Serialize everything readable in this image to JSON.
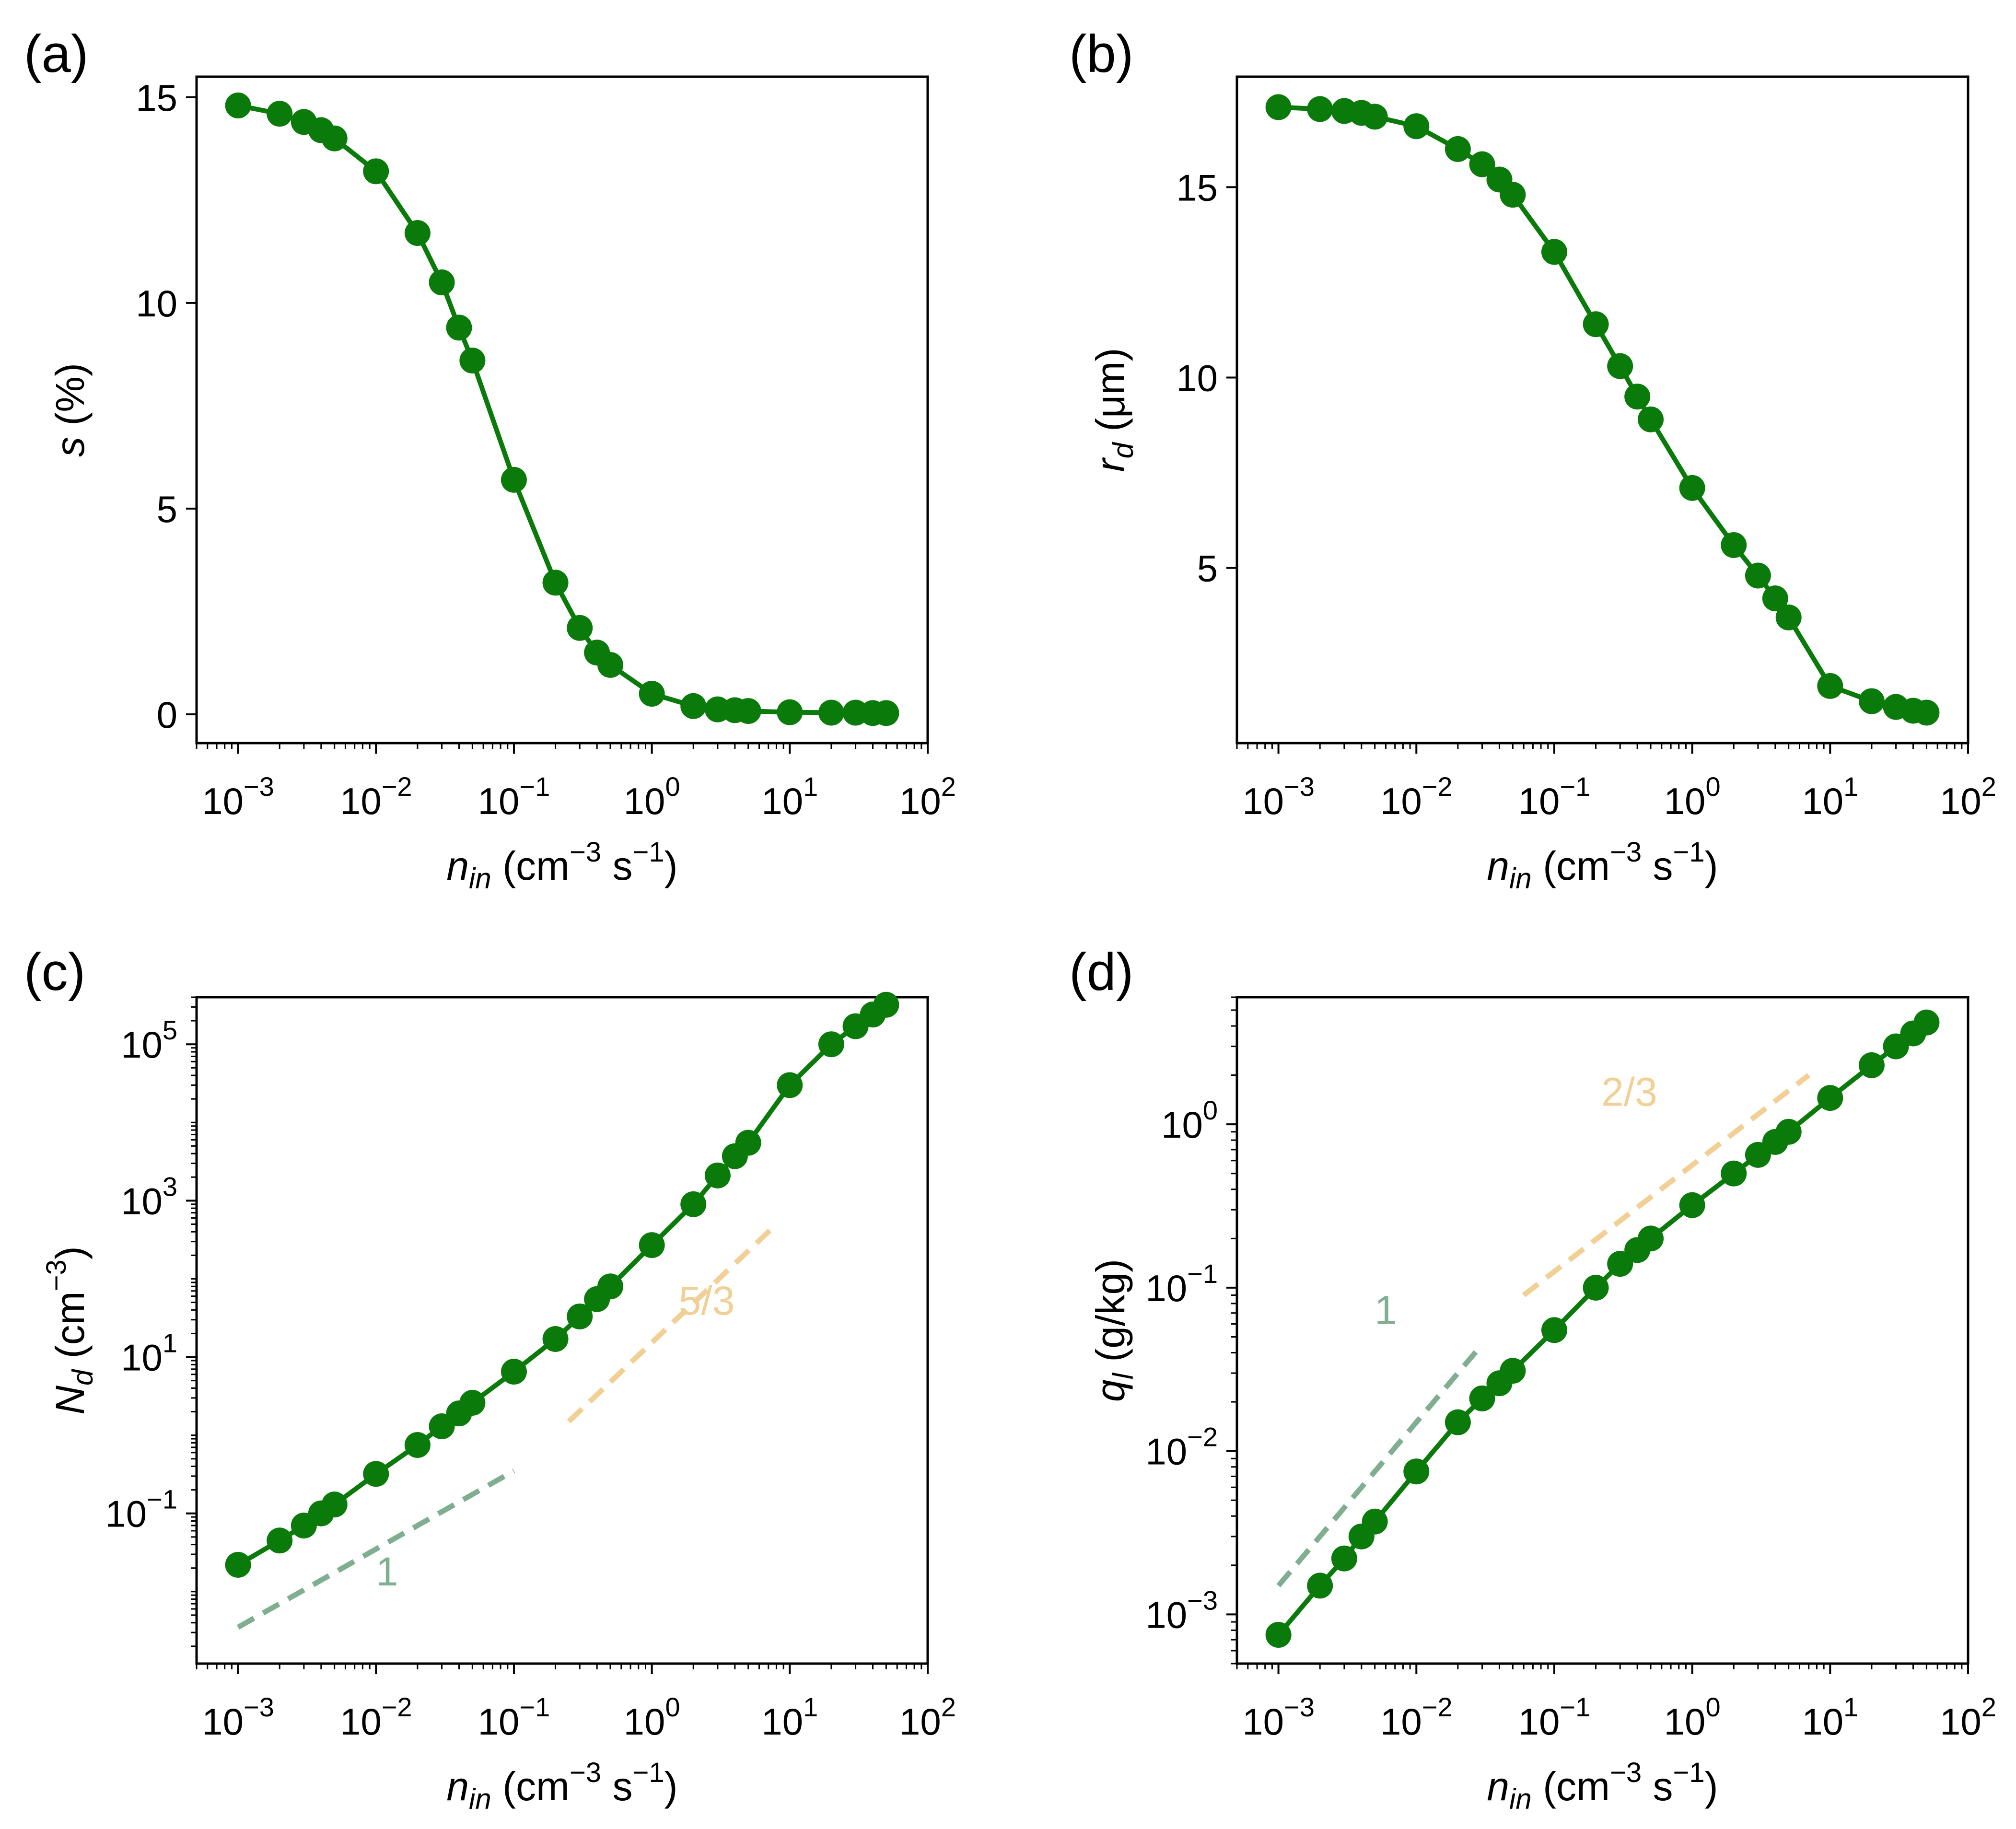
{
  "x_unit": "(cm",
  "x_unit_sup1": "−3",
  "x_unit_mid": " s",
  "x_unit_sup2": "−1",
  "x_unit_end": ")",
  "x_var_base": "n",
  "x_var_sub": "in",
  "colors": {
    "main": "#0a7a0a",
    "slope1": "#7fae90",
    "slope2": "#f2cf94"
  },
  "chart_data": [
    {
      "panel": "(a)",
      "type": "line",
      "xscale": "log",
      "yscale": "linear",
      "xlim": [
        0.0005,
        100
      ],
      "ylim": [
        -0.7,
        15.5
      ],
      "xticks": [
        0.001,
        0.01,
        0.1,
        1,
        10,
        100
      ],
      "xtick_labels": [
        [
          "10",
          "−3"
        ],
        [
          "10",
          "−2"
        ],
        [
          "10",
          "−1"
        ],
        [
          "10",
          "0"
        ],
        [
          "10",
          "1"
        ],
        [
          "10",
          "2"
        ]
      ],
      "yticks": [
        0,
        5,
        10,
        15
      ],
      "ytick_labels": [
        "0",
        "5",
        "10",
        "15"
      ],
      "ylabel": {
        "base": "s",
        "sub": "",
        "unit": " (%)"
      },
      "x": [
        0.001,
        0.002,
        0.003,
        0.004,
        0.005,
        0.01,
        0.02,
        0.03,
        0.04,
        0.05,
        0.1,
        0.2,
        0.3,
        0.4,
        0.5,
        1,
        2,
        3,
        4,
        5,
        10,
        20,
        30,
        40,
        50
      ],
      "series": [
        {
          "values": [
            14.8,
            14.6,
            14.4,
            14.2,
            14.0,
            13.2,
            11.7,
            10.5,
            9.4,
            8.6,
            5.7,
            3.2,
            2.1,
            1.5,
            1.2,
            0.5,
            0.2,
            0.12,
            0.1,
            0.08,
            0.05,
            0.04,
            0.04,
            0.03,
            0.03
          ]
        }
      ],
      "guides": []
    },
    {
      "panel": "(b)",
      "type": "line",
      "xscale": "log",
      "yscale": "linear",
      "xlim": [
        0.0005,
        100
      ],
      "ylim": [
        0.4,
        17.9
      ],
      "xticks": [
        0.001,
        0.01,
        0.1,
        1,
        10,
        100
      ],
      "xtick_labels": [
        [
          "10",
          "−3"
        ],
        [
          "10",
          "−2"
        ],
        [
          "10",
          "−1"
        ],
        [
          "10",
          "0"
        ],
        [
          "10",
          "1"
        ],
        [
          "10",
          "2"
        ]
      ],
      "yticks": [
        5,
        10,
        15
      ],
      "ytick_labels": [
        "5",
        "10",
        "15"
      ],
      "ylabel": {
        "base": "r",
        "sub": "d",
        "unit": " (μm)"
      },
      "x": [
        0.001,
        0.002,
        0.003,
        0.004,
        0.005,
        0.01,
        0.02,
        0.03,
        0.04,
        0.05,
        0.1,
        0.2,
        0.3,
        0.4,
        0.5,
        1,
        2,
        3,
        4,
        5,
        10,
        20,
        30,
        40,
        50
      ],
      "series": [
        {
          "values": [
            17.1,
            17.05,
            17.0,
            16.95,
            16.85,
            16.6,
            16.0,
            15.6,
            15.2,
            14.8,
            13.3,
            11.4,
            10.3,
            9.5,
            8.9,
            7.1,
            5.6,
            4.8,
            4.2,
            3.7,
            1.9,
            1.5,
            1.35,
            1.25,
            1.2
          ]
        }
      ],
      "guides": []
    },
    {
      "panel": "(c)",
      "type": "line",
      "xscale": "log",
      "yscale": "log",
      "xlim": [
        0.0005,
        100
      ],
      "ylim": [
        0.0012,
        400000
      ],
      "xticks": [
        0.001,
        0.01,
        0.1,
        1,
        10,
        100
      ],
      "xtick_labels": [
        [
          "10",
          "−3"
        ],
        [
          "10",
          "−2"
        ],
        [
          "10",
          "−1"
        ],
        [
          "10",
          "0"
        ],
        [
          "10",
          "1"
        ],
        [
          "10",
          "2"
        ]
      ],
      "yticks": [
        0.1,
        10,
        1000,
        100000
      ],
      "ytick_labels": [
        [
          "10",
          "−1"
        ],
        [
          "10",
          "1"
        ],
        [
          "10",
          "3"
        ],
        [
          "10",
          "5"
        ]
      ],
      "ylabel": {
        "base": "N",
        "sub": "d",
        "unit": " (cm",
        "sup": "−3",
        "end": ")"
      },
      "x": [
        0.001,
        0.002,
        0.003,
        0.004,
        0.005,
        0.01,
        0.02,
        0.03,
        0.04,
        0.05,
        0.1,
        0.2,
        0.3,
        0.4,
        0.5,
        1,
        2,
        3,
        4,
        5,
        10,
        20,
        30,
        40,
        50
      ],
      "series": [
        {
          "values": [
            0.022,
            0.045,
            0.07,
            0.1,
            0.13,
            0.32,
            0.75,
            1.3,
            1.9,
            2.6,
            6.5,
            17,
            33,
            55,
            80,
            270,
            900,
            2100,
            3700,
            5500,
            30000,
            100000,
            170000,
            240000,
            320000
          ]
        }
      ],
      "guides": [
        {
          "label": "1",
          "color_key": "slope1",
          "x": [
            0.001,
            0.1
          ],
          "y": [
            0.0035,
            0.35
          ],
          "label_x": 0.012,
          "label_y": 0.012
        },
        {
          "label": "5/3",
          "color_key": "slope2",
          "x": [
            0.25,
            8
          ],
          "y": [
            1.5,
            500
          ],
          "label_x": 2.5,
          "label_y": 35
        }
      ]
    },
    {
      "panel": "(d)",
      "type": "line",
      "xscale": "log",
      "yscale": "log",
      "xlim": [
        0.0005,
        100
      ],
      "ylim": [
        0.0005,
        6
      ],
      "xticks": [
        0.001,
        0.01,
        0.1,
        1,
        10,
        100
      ],
      "xtick_labels": [
        [
          "10",
          "−3"
        ],
        [
          "10",
          "−2"
        ],
        [
          "10",
          "−1"
        ],
        [
          "10",
          "0"
        ],
        [
          "10",
          "1"
        ],
        [
          "10",
          "2"
        ]
      ],
      "yticks": [
        0.001,
        0.01,
        0.1,
        1
      ],
      "ytick_labels": [
        [
          "10",
          "−3"
        ],
        [
          "10",
          "−2"
        ],
        [
          "10",
          "−1"
        ],
        [
          "10",
          "0"
        ]
      ],
      "ylabel": {
        "base": "q",
        "sub": "l",
        "unit": " (g/kg)"
      },
      "x": [
        0.001,
        0.002,
        0.003,
        0.004,
        0.005,
        0.01,
        0.02,
        0.03,
        0.04,
        0.05,
        0.1,
        0.2,
        0.3,
        0.4,
        0.5,
        1,
        2,
        3,
        4,
        5,
        10,
        20,
        30,
        40,
        50
      ],
      "series": [
        {
          "values": [
            0.00075,
            0.0015,
            0.0022,
            0.003,
            0.0037,
            0.0075,
            0.015,
            0.021,
            0.026,
            0.031,
            0.055,
            0.1,
            0.14,
            0.17,
            0.2,
            0.32,
            0.5,
            0.65,
            0.78,
            0.9,
            1.45,
            2.3,
            3.0,
            3.6,
            4.2
          ]
        }
      ],
      "guides": [
        {
          "label": "1",
          "color_key": "slope1",
          "x": [
            0.001,
            0.03
          ],
          "y": [
            0.0015,
            0.045
          ],
          "label_x": 0.006,
          "label_y": 0.06
        },
        {
          "label": "2/3",
          "color_key": "slope2",
          "x": [
            0.06,
            7
          ],
          "y": [
            0.09,
            2.0
          ],
          "label_x": 0.35,
          "label_y": 1.3
        }
      ]
    }
  ]
}
